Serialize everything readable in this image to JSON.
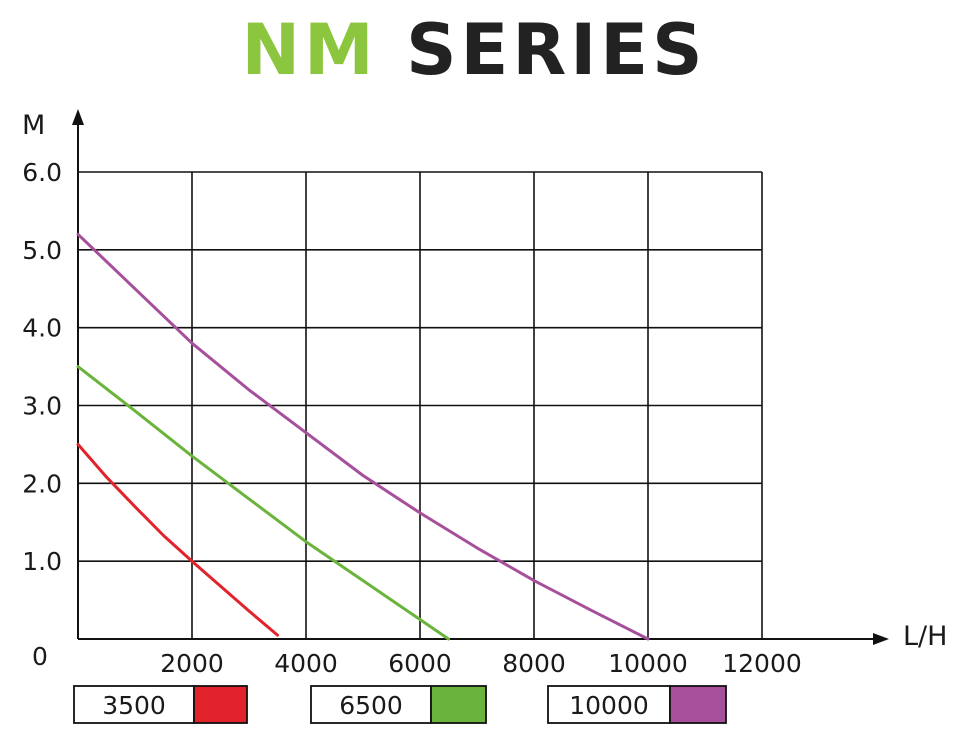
{
  "title": {
    "prefix": "NM",
    "suffix": "SERIES",
    "prefix_color": "#8cc63f",
    "suffix_color": "#222222"
  },
  "chart_data": {
    "type": "line",
    "xlabel": "L/H",
    "ylabel": "M",
    "xlim": [
      0,
      12000
    ],
    "ylim": [
      0,
      6
    ],
    "x_ticks": [
      "2000",
      "4000",
      "6000",
      "8000",
      "10000",
      "12000"
    ],
    "y_ticks": [
      "1.0",
      "2.0",
      "3.0",
      "4.0",
      "5.0",
      "6.0"
    ],
    "origin_label": "0",
    "grid": true,
    "series": [
      {
        "name": "3500",
        "color": "#e3232b",
        "points": [
          [
            0,
            2.5
          ],
          [
            500,
            2.08
          ],
          [
            1000,
            1.7
          ],
          [
            1500,
            1.33
          ],
          [
            2000,
            1.0
          ],
          [
            2500,
            0.68
          ],
          [
            3000,
            0.36
          ],
          [
            3500,
            0.05
          ]
        ]
      },
      {
        "name": "6500",
        "color": "#6ab43b",
        "points": [
          [
            0,
            3.5
          ],
          [
            1000,
            2.93
          ],
          [
            2000,
            2.35
          ],
          [
            3000,
            1.8
          ],
          [
            4000,
            1.25
          ],
          [
            5000,
            0.75
          ],
          [
            6000,
            0.25
          ],
          [
            6500,
            0.0
          ]
        ]
      },
      {
        "name": "10000",
        "color": "#a6509c",
        "points": [
          [
            0,
            5.2
          ],
          [
            1000,
            4.5
          ],
          [
            2000,
            3.8
          ],
          [
            3000,
            3.2
          ],
          [
            4000,
            2.65
          ],
          [
            5000,
            2.1
          ],
          [
            6000,
            1.62
          ],
          [
            7000,
            1.17
          ],
          [
            8000,
            0.75
          ],
          [
            9000,
            0.37
          ],
          [
            10000,
            0.0
          ]
        ]
      }
    ],
    "legend": [
      {
        "label": "3500",
        "color": "#e3232b"
      },
      {
        "label": "6500",
        "color": "#6ab43b"
      },
      {
        "label": "10000",
        "color": "#a6509c"
      }
    ]
  }
}
